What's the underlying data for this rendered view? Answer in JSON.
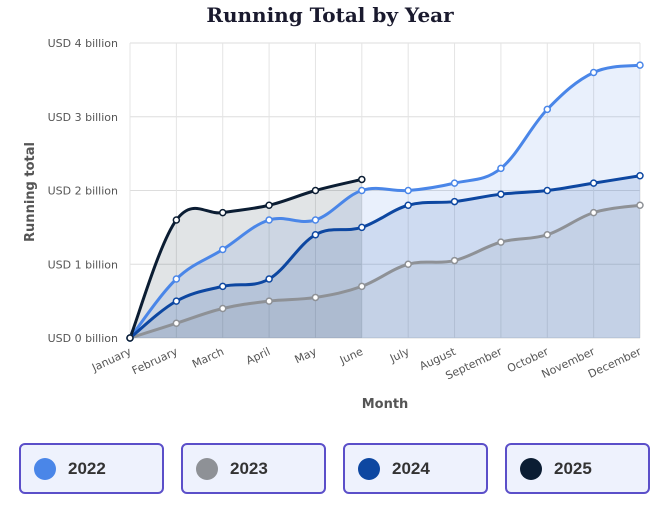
{
  "chart_data": {
    "type": "line",
    "title": "Running Total by Year",
    "x_label": "Month",
    "y_label": "Running total",
    "categories": [
      "January",
      "February",
      "March",
      "April",
      "May",
      "June",
      "July",
      "August",
      "September",
      "October",
      "November",
      "December"
    ],
    "series": [
      {
        "name": "2022",
        "color": "#4a86e8",
        "values": [
          0,
          0.8,
          1.2,
          1.6,
          1.6,
          2.0,
          2.0,
          2.1,
          2.3,
          3.1,
          3.6,
          3.7
        ]
      },
      {
        "name": "2023",
        "color": "#8e9196",
        "values": [
          0,
          0.2,
          0.4,
          0.5,
          0.55,
          0.7,
          1.0,
          1.05,
          1.3,
          1.4,
          1.7,
          1.8
        ]
      },
      {
        "name": "2024",
        "color": "#0d47a1",
        "values": [
          0,
          0.5,
          0.7,
          0.8,
          1.4,
          1.5,
          1.8,
          1.85,
          1.95,
          2.0,
          2.1,
          2.2
        ]
      },
      {
        "name": "2025",
        "color": "#0b1d33",
        "values": [
          0,
          1.6,
          1.7,
          1.8,
          2.0,
          2.15,
          null,
          null,
          null,
          null,
          null,
          null
        ]
      }
    ],
    "ylim": [
      0,
      4
    ],
    "yticks": [
      {
        "value": 0,
        "label": "USD 0 billion"
      },
      {
        "value": 1,
        "label": "USD 1 billion"
      },
      {
        "value": 2,
        "label": "USD 2 billion"
      },
      {
        "value": 3,
        "label": "USD 3 billion"
      },
      {
        "value": 4,
        "label": "USD 4 billion"
      }
    ],
    "grid": true
  }
}
